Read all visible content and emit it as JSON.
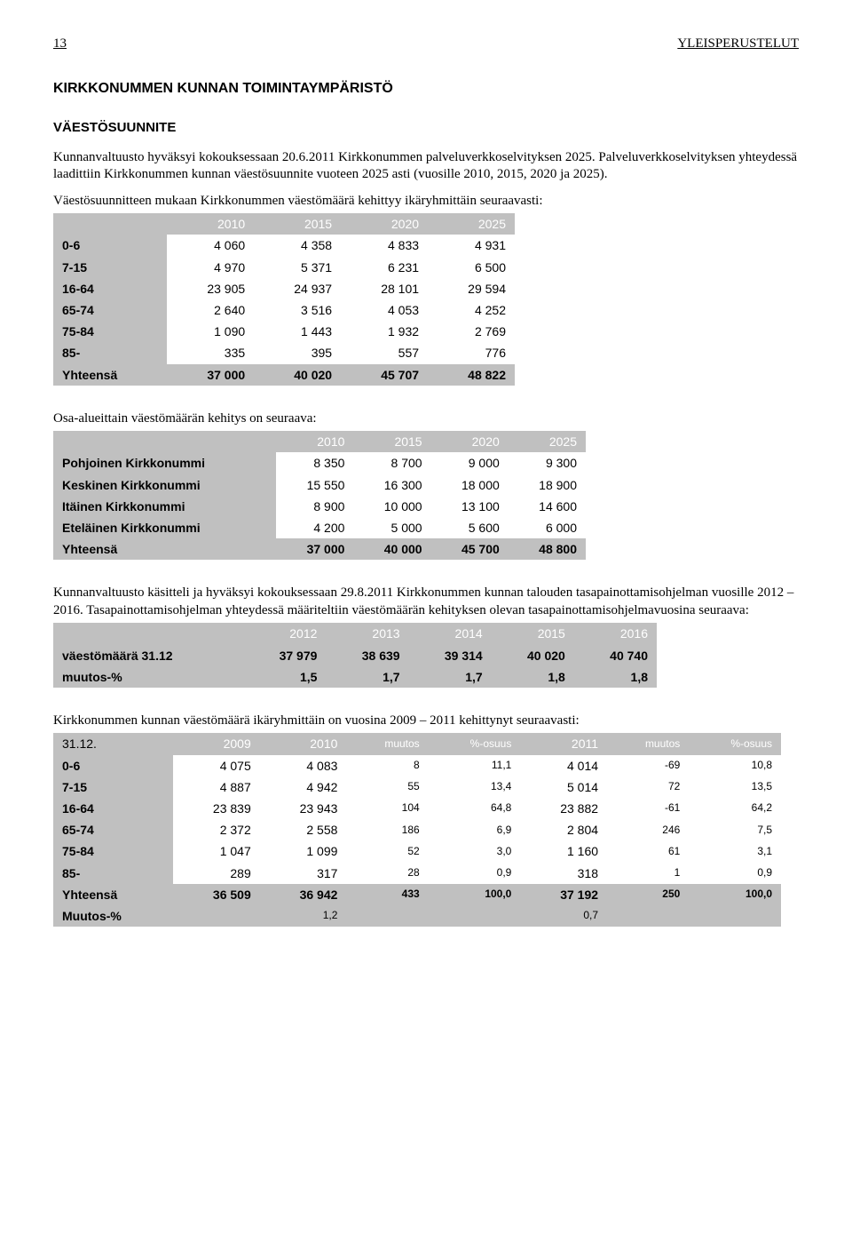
{
  "header": {
    "page_number": "13",
    "section": "YLEISPERUSTELUT"
  },
  "title": "KIRKKONUMMEN KUNNAN TOIMINTAYMPÄRISTÖ",
  "subheading": "VÄESTÖSUUNNITE",
  "para1": "Kunnanvaltuusto hyväksyi kokouksessaan 20.6.2011 Kirkkonummen palveluverkkoselvityksen 2025. Palveluverkkoselvityksen yhteydessä laadittiin Kirkkonummen kunnan väestösuunnite vuoteen 2025 asti (vuosille 2010, 2015, 2020 ja 2025).",
  "para2": "Väestösuunnitteen mukaan Kirkkonummen väestömäärä kehittyy ikäryhmittäin seuraavasti:",
  "table1": {
    "headers": [
      "",
      "2010",
      "2015",
      "2020",
      "2025"
    ],
    "rows": [
      [
        "0-6",
        "4 060",
        "4 358",
        "4 833",
        "4 931"
      ],
      [
        "7-15",
        "4 970",
        "5 371",
        "6 231",
        "6 500"
      ],
      [
        "16-64",
        "23 905",
        "24 937",
        "28 101",
        "29 594"
      ],
      [
        "65-74",
        "2 640",
        "3 516",
        "4 053",
        "4 252"
      ],
      [
        "75-84",
        "1 090",
        "1 443",
        "1 932",
        "2 769"
      ],
      [
        "85-",
        "335",
        "395",
        "557",
        "776"
      ]
    ],
    "total": [
      "Yhteensä",
      "37 000",
      "40 020",
      "45 707",
      "48 822"
    ]
  },
  "para3": "Osa-alueittain väestömäärän kehitys on seuraava:",
  "table2": {
    "headers": [
      "",
      "2010",
      "2015",
      "2020",
      "2025"
    ],
    "rows": [
      [
        "Pohjoinen Kirkkonummi",
        "8 350",
        "8 700",
        "9 000",
        "9 300"
      ],
      [
        "Keskinen Kirkkonummi",
        "15 550",
        "16 300",
        "18 000",
        "18 900"
      ],
      [
        "Itäinen Kirkkonummi",
        "8 900",
        "10 000",
        "13 100",
        "14 600"
      ],
      [
        "Eteläinen Kirkkonummi",
        "4 200",
        "5 000",
        "5 600",
        "6 000"
      ]
    ],
    "total": [
      "Yhteensä",
      "37 000",
      "40 000",
      "45 700",
      "48 800"
    ]
  },
  "para4": "Kunnanvaltuusto käsitteli ja hyväksyi kokouksessaan 29.8.2011 Kirkkonummen kunnan talouden tasapainottamisohjelman vuosille 2012 – 2016. Tasapainottamisohjelman yhteydessä määriteltiin väestömäärän kehityksen olevan tasapainottamisohjelmavuosina seuraava:",
  "table3": {
    "headers": [
      "",
      "2012",
      "2013",
      "2014",
      "2015",
      "2016"
    ],
    "rows": [
      [
        "väestömäärä 31.12",
        "37 979",
        "38 639",
        "39 314",
        "40 020",
        "40 740"
      ],
      [
        "muutos-%",
        "1,5",
        "1,7",
        "1,7",
        "1,8",
        "1,8"
      ]
    ]
  },
  "para5": "Kirkkonummen kunnan väestömäärä ikäryhmittäin on vuosina 2009 – 2011 kehittynyt seuraavasti:",
  "table4": {
    "headers": [
      "31.12.",
      "2009",
      "2010",
      "muutos",
      "%-osuus",
      "2011",
      "muutos",
      "%-osuus"
    ],
    "rows": [
      [
        "0-6",
        "4 075",
        "4 083",
        "8",
        "11,1",
        "4 014",
        "-69",
        "10,8"
      ],
      [
        "7-15",
        "4 887",
        "4 942",
        "55",
        "13,4",
        "5 014",
        "72",
        "13,5"
      ],
      [
        "16-64",
        "23 839",
        "23 943",
        "104",
        "64,8",
        "23 882",
        "-61",
        "64,2"
      ],
      [
        "65-74",
        "2 372",
        "2 558",
        "186",
        "6,9",
        "2 804",
        "246",
        "7,5"
      ],
      [
        "75-84",
        "1 047",
        "1 099",
        "52",
        "3,0",
        "1 160",
        "61",
        "3,1"
      ],
      [
        "85-",
        "289",
        "317",
        "28",
        "0,9",
        "318",
        "1",
        "0,9"
      ]
    ],
    "total": [
      "Yhteensä",
      "36 509",
      "36 942",
      "433",
      "100,0",
      "37 192",
      "250",
      "100,0"
    ],
    "muutos": [
      "Muutos-%",
      "",
      "1,2",
      "",
      "",
      "0,7",
      "",
      ""
    ]
  }
}
